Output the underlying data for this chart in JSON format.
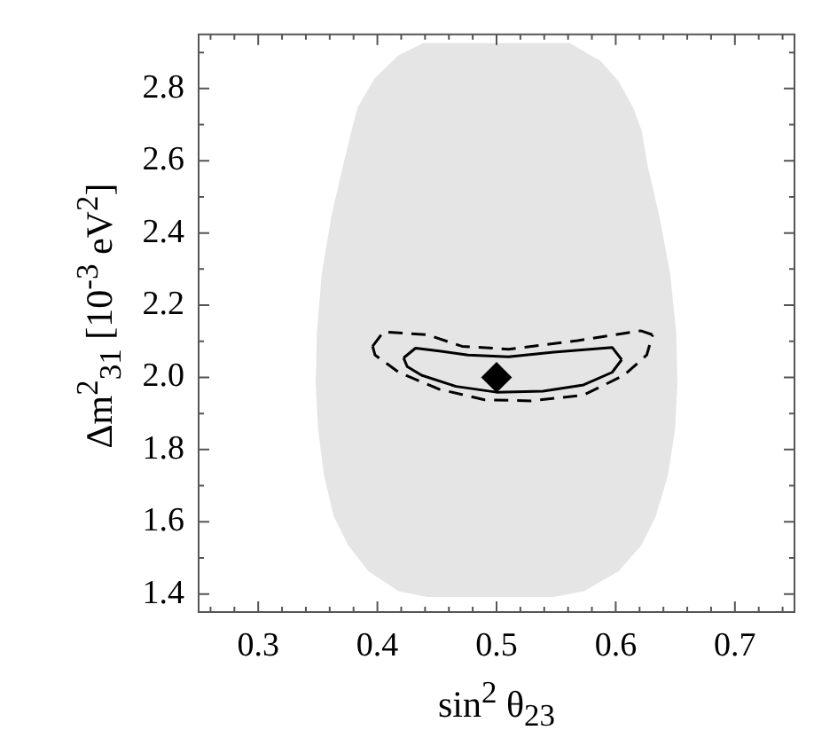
{
  "chart_data": {
    "type": "scatter",
    "xlabel": "sin$^{2}$ θ$_{23}$",
    "ylabel": "Δm$^{2}$$_{31}$ [10$^{-3}$ eV$^{2}$]",
    "xlim": [
      0.25,
      0.75
    ],
    "ylim": [
      1.35,
      2.95
    ],
    "xticks": [
      {
        "value": 0.26,
        "label": null
      },
      {
        "value": 0.28,
        "label": null
      },
      0.3,
      {
        "value": 0.32,
        "label": null
      },
      {
        "value": 0.34,
        "label": null
      },
      {
        "value": 0.36,
        "label": null
      },
      {
        "value": 0.38,
        "label": null
      },
      0.4,
      {
        "value": 0.42,
        "label": null
      },
      {
        "value": 0.44,
        "label": null
      },
      {
        "value": 0.46,
        "label": null
      },
      {
        "value": 0.48,
        "label": null
      },
      0.5,
      {
        "value": 0.52,
        "label": null
      },
      {
        "value": 0.54,
        "label": null
      },
      {
        "value": 0.56,
        "label": null
      },
      {
        "value": 0.58,
        "label": null
      },
      0.6,
      {
        "value": 0.62,
        "label": null
      },
      {
        "value": 0.64,
        "label": null
      },
      {
        "value": 0.66,
        "label": null
      },
      {
        "value": 0.68,
        "label": null
      },
      0.7,
      {
        "value": 0.72,
        "label": null
      },
      {
        "value": 0.74,
        "label": null
      }
    ],
    "yticks": [
      1.4,
      {
        "value": 1.5,
        "label": null
      },
      1.6,
      {
        "value": 1.7,
        "label": null
      },
      1.8,
      {
        "value": 1.9,
        "label": null
      },
      {
        "value": 2.0,
        "label": "2.0"
      },
      {
        "value": 2.1,
        "label": null
      },
      2.2,
      {
        "value": 2.3,
        "label": null
      },
      2.4,
      {
        "value": 2.5,
        "label": null
      },
      2.6,
      {
        "value": 2.7,
        "label": null
      },
      2.8,
      {
        "value": 2.9,
        "label": null
      }
    ],
    "series": [
      {
        "type": "area",
        "color": "#e5e5e5",
        "x": [
          0.439,
          0.561,
          0.587,
          0.602,
          0.614,
          0.621,
          0.626,
          0.636,
          0.645,
          0.65,
          0.651,
          0.649,
          0.643,
          0.633,
          0.621,
          0.602,
          0.573,
          0.548,
          0.442,
          0.418,
          0.393,
          0.376,
          0.364,
          0.356,
          0.351,
          0.349,
          0.35,
          0.354,
          0.362,
          0.372,
          0.379,
          0.384,
          0.398,
          0.418,
          0.439
        ],
        "values": [
          2.924,
          2.924,
          2.874,
          2.818,
          2.746,
          2.683,
          2.587,
          2.444,
          2.285,
          2.126,
          1.982,
          1.855,
          1.728,
          1.617,
          1.537,
          1.465,
          1.41,
          1.394,
          1.394,
          1.41,
          1.465,
          1.537,
          1.617,
          1.728,
          1.855,
          1.982,
          2.126,
          2.285,
          2.444,
          2.587,
          2.683,
          2.746,
          2.826,
          2.89,
          2.924
        ]
      },
      {
        "type": "line",
        "color": "#000000",
        "line_style": "solid",
        "x": [
          0.422,
          0.432,
          0.452,
          0.476,
          0.51,
          0.548,
          0.597,
          0.605
        ],
        "values": [
          2.054,
          2.081,
          2.073,
          2.062,
          2.057,
          2.07,
          2.083,
          2.049
        ]
      },
      {
        "type": "line",
        "color": "#000000",
        "line_style": "solid",
        "x": [
          0.422,
          0.425,
          0.437,
          0.466,
          0.5,
          0.539,
          0.573,
          0.597,
          0.605
        ],
        "values": [
          2.054,
          2.03,
          2.006,
          1.975,
          1.959,
          1.962,
          1.979,
          2.014,
          2.049
        ]
      },
      {
        "type": "line",
        "color": "#000000",
        "line_style": "dashed",
        "x": [
          0.396,
          0.405,
          0.442,
          0.471,
          0.51,
          0.568,
          0.621,
          0.631
        ],
        "values": [
          2.086,
          2.126,
          2.118,
          2.086,
          2.078,
          2.102,
          2.129,
          2.118
        ]
      },
      {
        "type": "line",
        "color": "#000000",
        "line_style": "dashed",
        "x": [
          0.396,
          0.398,
          0.418,
          0.452,
          0.49,
          0.529,
          0.573,
          0.607,
          0.626,
          0.631
        ],
        "values": [
          2.086,
          2.062,
          2.014,
          1.967,
          1.938,
          1.935,
          1.951,
          2.006,
          2.062,
          2.118
        ]
      },
      {
        "type": "scatter",
        "color": "#000000",
        "marker": "diamond",
        "x": [
          0.5
        ],
        "values": [
          2.0
        ]
      }
    ]
  }
}
